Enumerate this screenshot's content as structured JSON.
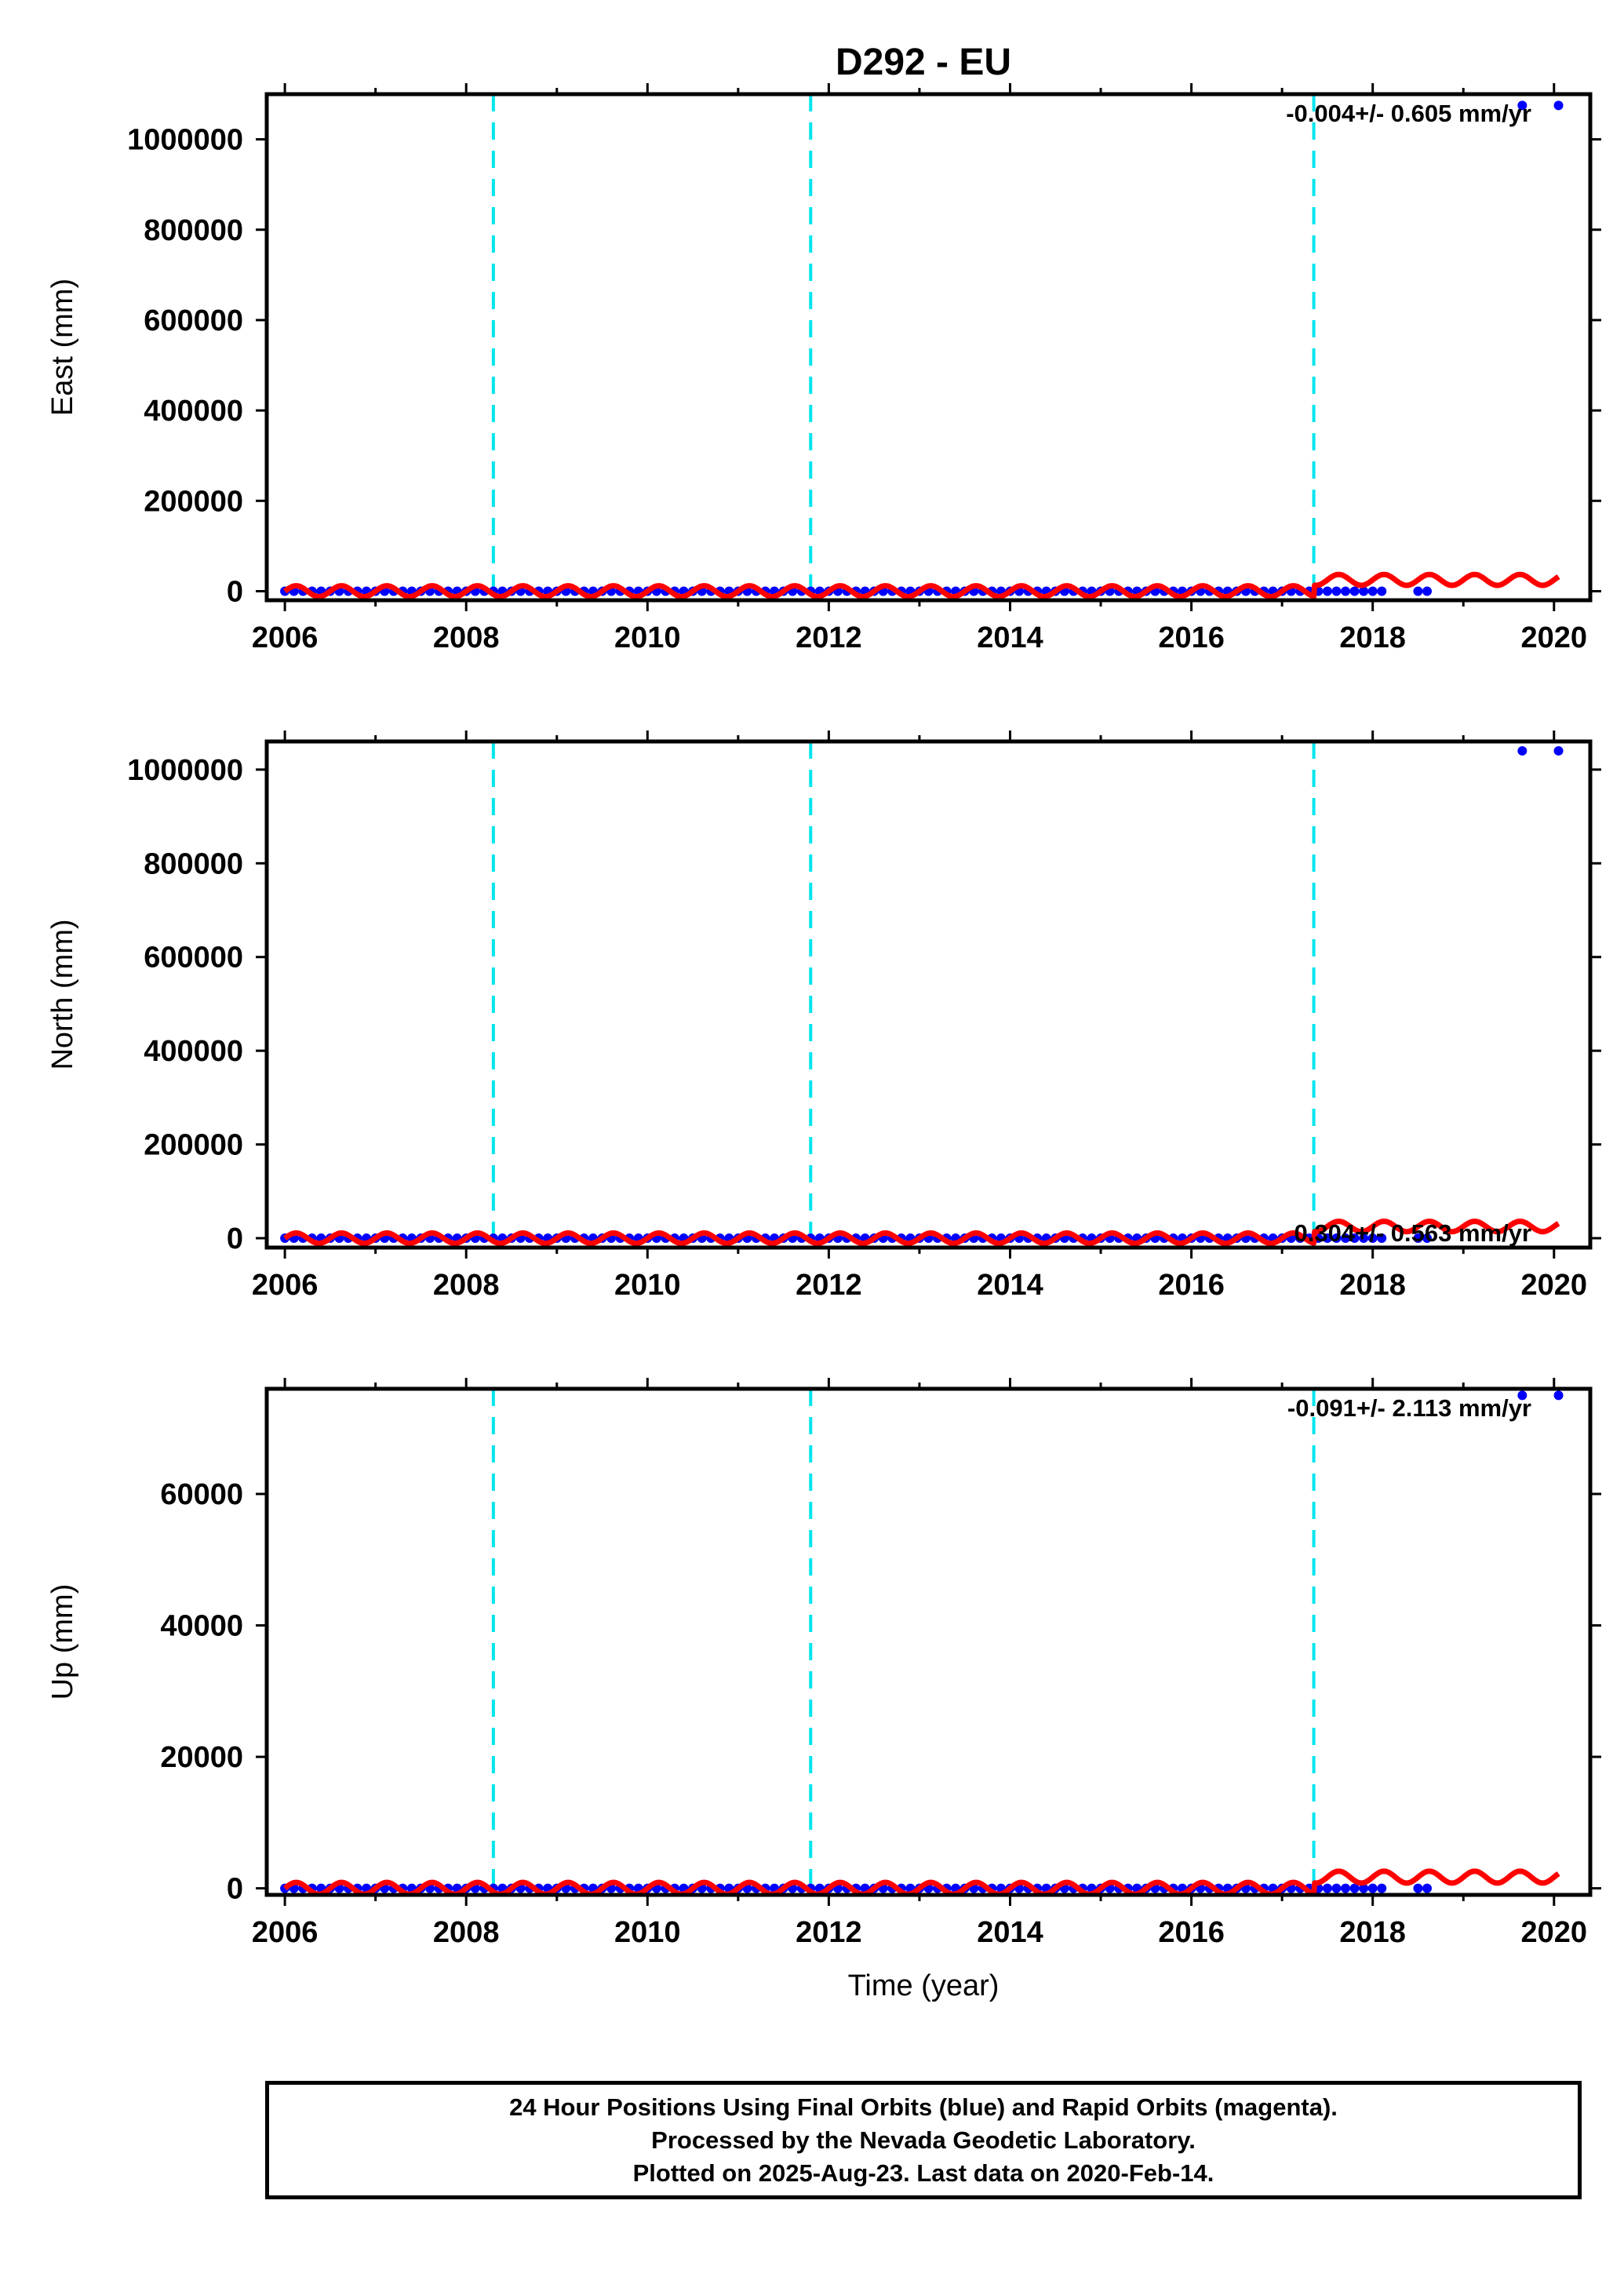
{
  "title": "D292 - EU",
  "xlabel": "Time (year)",
  "footer": {
    "line1": "24 Hour Positions Using Final Orbits (blue) and Rapid Orbits (magenta).",
    "line2": "Processed by the Nevada Geodetic Laboratory.",
    "line3": "Plotted on 2025-Aug-23. Last data on 2020-Feb-14."
  },
  "colors": {
    "final_orbits": "#0000ff",
    "rapid_orbits": "#ff0000",
    "equipment_change_lines": "#00e5ee",
    "axes": "#000000"
  },
  "chart_data": [
    {
      "type": "scatter",
      "panel": "east",
      "ylabel": "East (mm)",
      "velocity_text": "-0.004+/- 0.605 mm/yr",
      "velocity_text_position": "top-right",
      "xlim": [
        2005.8,
        2020.4
      ],
      "ylim": [
        -20000,
        1100000
      ],
      "x_ticks": [
        2006,
        2008,
        2010,
        2012,
        2014,
        2016,
        2018,
        2020
      ],
      "y_ticks": [
        0,
        200000,
        400000,
        600000,
        800000,
        1000000
      ],
      "y_tick_labels": [
        "0",
        "200000",
        "400000",
        "600000",
        "800000",
        "1000000"
      ],
      "equipment_changes": [
        2008.3,
        2011.8,
        2017.35
      ],
      "final_orbits": {
        "x_range": [
          2006.0,
          2018.1
        ],
        "y": 0,
        "extra_points": [
          {
            "x": 2018.5,
            "y": 0
          },
          {
            "x": 2018.6,
            "y": 0
          }
        ]
      },
      "outliers": [
        {
          "x": 2019.65,
          "y": 1075000
        },
        {
          "x": 2020.05,
          "y": 1075000
        }
      ],
      "model_fit": {
        "x_range": [
          2006.0,
          2020.05
        ],
        "baseline_mm": 0,
        "amplitude_mm": 12000,
        "period_yr": 0.5,
        "offset_after_2017_35_mm": 25000
      }
    },
    {
      "type": "scatter",
      "panel": "north",
      "ylabel": "North (mm)",
      "velocity_text": "0.304+/- 0.563 mm/yr",
      "velocity_text_position": "bottom-right",
      "xlim": [
        2005.8,
        2020.4
      ],
      "ylim": [
        -20000,
        1060000
      ],
      "x_ticks": [
        2006,
        2008,
        2010,
        2012,
        2014,
        2016,
        2018,
        2020
      ],
      "y_ticks": [
        0,
        200000,
        400000,
        600000,
        800000,
        1000000
      ],
      "y_tick_labels": [
        "0",
        "200000",
        "400000",
        "600000",
        "800000",
        "1000000"
      ],
      "equipment_changes": [
        2008.3,
        2011.8,
        2017.35
      ],
      "final_orbits": {
        "x_range": [
          2006.0,
          2018.1
        ],
        "y": 0,
        "extra_points": [
          {
            "x": 2018.5,
            "y": 0
          },
          {
            "x": 2018.6,
            "y": 0
          }
        ]
      },
      "outliers": [
        {
          "x": 2019.65,
          "y": 1040000
        },
        {
          "x": 2020.05,
          "y": 1040000
        }
      ],
      "model_fit": {
        "x_range": [
          2006.0,
          2020.05
        ],
        "baseline_mm": 0,
        "amplitude_mm": 11000,
        "period_yr": 0.5,
        "offset_after_2017_35_mm": 25000
      }
    },
    {
      "type": "scatter",
      "panel": "up",
      "ylabel": "Up (mm)",
      "velocity_text": "-0.091+/- 2.113 mm/yr",
      "velocity_text_position": "top-right",
      "xlim": [
        2005.8,
        2020.4
      ],
      "ylim": [
        -1000,
        76000
      ],
      "x_ticks": [
        2006,
        2008,
        2010,
        2012,
        2014,
        2016,
        2018,
        2020
      ],
      "y_ticks": [
        0,
        20000,
        40000,
        60000
      ],
      "y_tick_labels": [
        "0",
        "20000",
        "40000",
        "60000"
      ],
      "equipment_changes": [
        2008.3,
        2011.8,
        2017.35
      ],
      "final_orbits": {
        "x_range": [
          2006.0,
          2018.1
        ],
        "y": 0,
        "extra_points": [
          {
            "x": 2018.5,
            "y": 0
          },
          {
            "x": 2018.6,
            "y": 0
          }
        ]
      },
      "outliers": [
        {
          "x": 2019.65,
          "y": 75000
        },
        {
          "x": 2020.05,
          "y": 75000
        }
      ],
      "model_fit": {
        "x_range": [
          2006.0,
          2020.05
        ],
        "baseline_mm": 0,
        "amplitude_mm": 900,
        "period_yr": 0.5,
        "offset_after_2017_35_mm": 1700
      }
    }
  ]
}
